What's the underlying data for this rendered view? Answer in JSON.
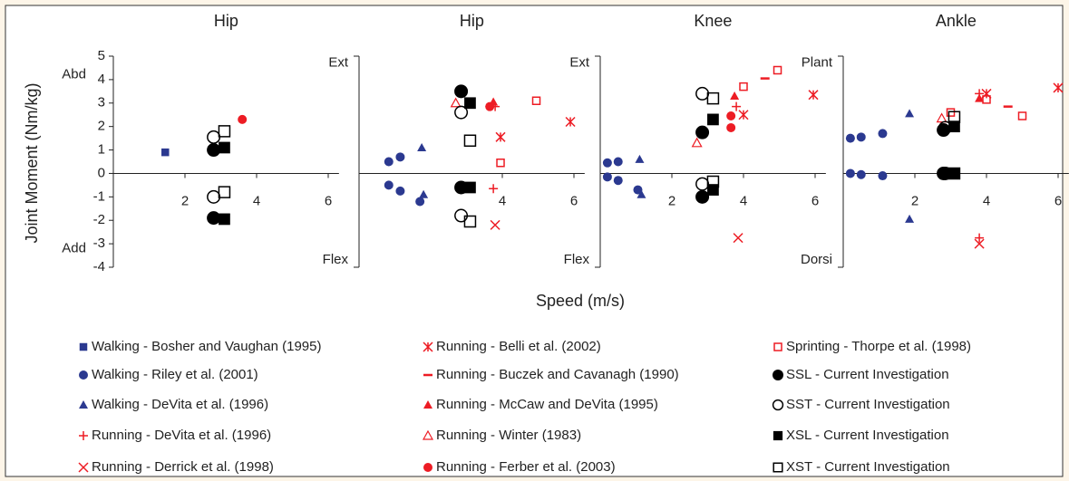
{
  "ylabel": "Joint Moment (Nm/kg)",
  "xlabel": "Speed (m/s)",
  "legend": [
    {
      "name": "Walking - Bosher and Vaughan (1995)",
      "color": "#2b3990",
      "marker": "square"
    },
    {
      "name": "Walking - Riley et al. (2001)",
      "color": "#2b3990",
      "marker": "circle"
    },
    {
      "name": "Walking - DeVita et al. (1996)",
      "color": "#2b3990",
      "marker": "triangle"
    },
    {
      "name": "Running - DeVita et al. (1996)",
      "color": "#ed1c24",
      "marker": "plus"
    },
    {
      "name": "Running - Derrick et al. (1998)",
      "color": "#ed1c24",
      "marker": "x"
    },
    {
      "name": "Running - Belli et al. (2002)",
      "color": "#ed1c24",
      "marker": "asterisk"
    },
    {
      "name": "Running - Buczek and Cavanagh (1990)",
      "color": "#ed1c24",
      "marker": "dash"
    },
    {
      "name": "Running - McCaw and DeVita (1995)",
      "color": "#ed1c24",
      "marker": "triangle"
    },
    {
      "name": "Running - Winter (1983)",
      "color": "#ed1c24",
      "marker": "triangle-open"
    },
    {
      "name": "Running - Ferber et al. (2003)",
      "color": "#ed1c24",
      "marker": "circle"
    },
    {
      "name": "Sprinting - Thorpe et al. (1998)",
      "color": "#ed1c24",
      "marker": "square-open"
    },
    {
      "name": "SSL - Current Investigation",
      "color": "#000000",
      "marker": "circle"
    },
    {
      "name": "SST - Current Investigation",
      "color": "#000000",
      "marker": "circle-open"
    },
    {
      "name": "XSL - Current Investigation",
      "color": "#000000",
      "marker": "square"
    },
    {
      "name": "XST - Current Investigation",
      "color": "#000000",
      "marker": "square-open"
    }
  ],
  "chart_data": [
    {
      "type": "scatter",
      "title": "Hip",
      "pos_label": "Abd",
      "neg_label": "Add",
      "xlim": [
        0,
        6.3
      ],
      "ylim": [
        -4,
        5
      ],
      "xticks": [
        2,
        4,
        6
      ],
      "yticks": [
        -4,
        -3,
        -2,
        -1,
        0,
        1,
        2,
        3,
        4,
        5
      ],
      "series": [
        {
          "x": [
            1.45
          ],
          "y": [
            0.9
          ]
        },
        {
          "x": [],
          "y": []
        },
        {
          "x": [],
          "y": []
        },
        {
          "x": [],
          "y": []
        },
        {
          "x": [],
          "y": []
        },
        {
          "x": [],
          "y": []
        },
        {
          "x": [],
          "y": []
        },
        {
          "x": [],
          "y": []
        },
        {
          "x": [],
          "y": []
        },
        {
          "x": [
            3.6
          ],
          "y": [
            2.3
          ]
        },
        {
          "x": [],
          "y": []
        },
        {
          "x": [
            2.8,
            2.8
          ],
          "y": [
            1.0,
            -1.9
          ]
        },
        {
          "x": [
            2.8,
            2.8
          ],
          "y": [
            1.55,
            -1.0
          ]
        },
        {
          "x": [
            3.1,
            3.1
          ],
          "y": [
            1.1,
            -1.95
          ]
        },
        {
          "x": [
            3.1,
            3.1
          ],
          "y": [
            1.8,
            -0.8
          ]
        }
      ]
    },
    {
      "type": "scatter",
      "title": "Hip",
      "pos_label": "Ext",
      "neg_label": "Flex",
      "xlim": [
        0,
        6.3
      ],
      "ylim": [
        -4,
        5
      ],
      "xticks": [
        4,
        6
      ],
      "series": [
        {
          "x": [],
          "y": []
        },
        {
          "x": [
            0.83,
            1.15,
            0.83,
            1.15,
            1.7
          ],
          "y": [
            0.5,
            0.7,
            -0.5,
            -0.75,
            -1.2
          ]
        },
        {
          "x": [
            1.75,
            1.8
          ],
          "y": [
            1.1,
            -0.9
          ]
        },
        {
          "x": [
            3.8,
            3.75
          ],
          "y": [
            2.85,
            -0.65
          ]
        },
        {
          "x": [
            3.8
          ],
          "y": [
            -2.2
          ]
        },
        {
          "x": [
            3.95,
            5.9
          ],
          "y": [
            1.55,
            2.2
          ]
        },
        {
          "x": [],
          "y": []
        },
        {
          "x": [
            3.75
          ],
          "y": [
            3.05
          ]
        },
        {
          "x": [
            2.7
          ],
          "y": [
            3.0
          ]
        },
        {
          "x": [
            3.65
          ],
          "y": [
            2.85
          ]
        },
        {
          "x": [
            4.95,
            3.95
          ],
          "y": [
            3.1,
            0.45
          ]
        },
        {
          "x": [
            2.85,
            2.85
          ],
          "y": [
            3.5,
            -0.6
          ]
        },
        {
          "x": [
            2.85,
            2.85
          ],
          "y": [
            2.6,
            -1.8
          ]
        },
        {
          "x": [
            3.1,
            3.1
          ],
          "y": [
            3.0,
            -0.6
          ]
        },
        {
          "x": [
            3.1,
            3.1
          ],
          "y": [
            1.4,
            -2.05
          ]
        }
      ]
    },
    {
      "type": "scatter",
      "title": "Knee",
      "pos_label": "Ext",
      "neg_label": "Flex",
      "xlim": [
        0,
        6.3
      ],
      "ylim": [
        -4,
        5
      ],
      "xticks": [
        2,
        4,
        6
      ],
      "series": [
        {
          "x": [],
          "y": []
        },
        {
          "x": [
            0.2,
            0.5,
            0.2,
            0.5,
            1.05
          ],
          "y": [
            0.45,
            0.5,
            -0.15,
            -0.3,
            -0.7
          ]
        },
        {
          "x": [
            1.1,
            1.15
          ],
          "y": [
            0.6,
            -0.9
          ]
        },
        {
          "x": [
            3.8
          ],
          "y": [
            2.85
          ]
        },
        {
          "x": [
            3.85
          ],
          "y": [
            -2.75
          ]
        },
        {
          "x": [
            4.0,
            5.95
          ],
          "y": [
            2.5,
            3.35
          ]
        },
        {
          "x": [
            4.6
          ],
          "y": [
            4.05
          ]
        },
        {
          "x": [
            3.75
          ],
          "y": [
            3.3
          ]
        },
        {
          "x": [
            2.7
          ],
          "y": [
            1.3
          ]
        },
        {
          "x": [
            3.65,
            3.65
          ],
          "y": [
            2.45,
            1.95
          ]
        },
        {
          "x": [
            4.0,
            4.95
          ],
          "y": [
            3.7,
            4.4
          ]
        },
        {
          "x": [
            2.85,
            2.85
          ],
          "y": [
            1.75,
            -1.0
          ]
        },
        {
          "x": [
            2.85,
            2.85
          ],
          "y": [
            3.4,
            -0.45
          ]
        },
        {
          "x": [
            3.15,
            3.15
          ],
          "y": [
            2.3,
            -0.7
          ]
        },
        {
          "x": [
            3.15,
            3.15
          ],
          "y": [
            3.2,
            -0.35
          ]
        }
      ]
    },
    {
      "type": "scatter",
      "title": "Ankle",
      "pos_label": "Plant",
      "neg_label": "Dorsi",
      "xlim": [
        0,
        6.3
      ],
      "ylim": [
        -4,
        5
      ],
      "xticks": [
        2,
        4,
        6
      ],
      "series": [
        {
          "x": [],
          "y": []
        },
        {
          "x": [
            0.2,
            0.5,
            0.2,
            0.5,
            1.1,
            1.1
          ],
          "y": [
            1.5,
            1.55,
            0,
            -0.05,
            1.7,
            -0.1
          ]
        },
        {
          "x": [
            1.85,
            1.85
          ],
          "y": [
            2.55,
            -1.95
          ]
        },
        {
          "x": [
            3.8,
            3.8
          ],
          "y": [
            3.4,
            -2.75
          ]
        },
        {
          "x": [
            3.8
          ],
          "y": [
            -3.0
          ]
        },
        {
          "x": [
            4.0,
            6.0
          ],
          "y": [
            3.4,
            3.65
          ]
        },
        {
          "x": [
            4.6
          ],
          "y": [
            2.85
          ]
        },
        {
          "x": [
            3.8
          ],
          "y": [
            3.2
          ]
        },
        {
          "x": [
            2.75
          ],
          "y": [
            2.35
          ]
        },
        {
          "x": [],
          "y": []
        },
        {
          "x": [
            3.0,
            4.0,
            5.0
          ],
          "y": [
            2.6,
            3.15,
            2.45
          ]
        },
        {
          "x": [
            2.8,
            2.8
          ],
          "y": [
            1.85,
            0
          ]
        },
        {
          "x": [
            2.85,
            2.85
          ],
          "y": [
            1.95,
            0
          ]
        },
        {
          "x": [
            3.1,
            3.1
          ],
          "y": [
            2.0,
            0
          ]
        },
        {
          "x": [
            3.1,
            3.1
          ],
          "y": [
            2.4,
            0
          ]
        }
      ]
    }
  ]
}
